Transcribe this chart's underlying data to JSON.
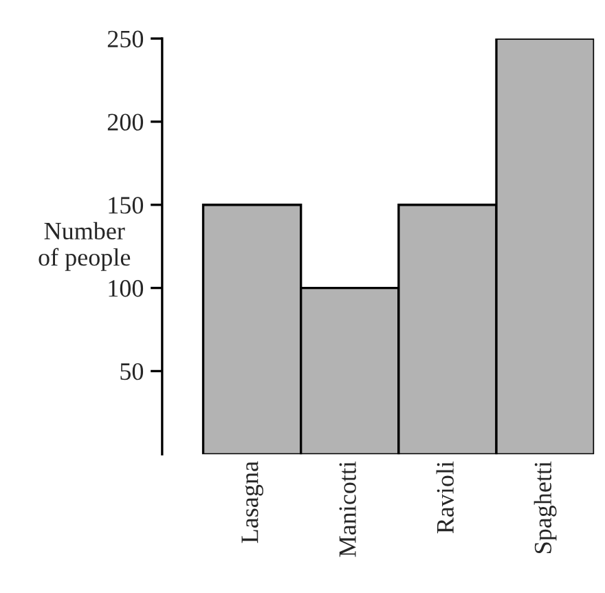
{
  "chart_data": {
    "type": "bar",
    "ylabel": "Number\nof people",
    "categories": [
      "Lasagna",
      "Manicotti",
      "Ravioli",
      "Spaghetti"
    ],
    "values": [
      150,
      100,
      150,
      250
    ],
    "color": "#b3b3b3",
    "ylim": [
      0,
      250
    ],
    "yticks": [
      50,
      100,
      150,
      200,
      250
    ],
    "grid": false,
    "legend": false
  }
}
